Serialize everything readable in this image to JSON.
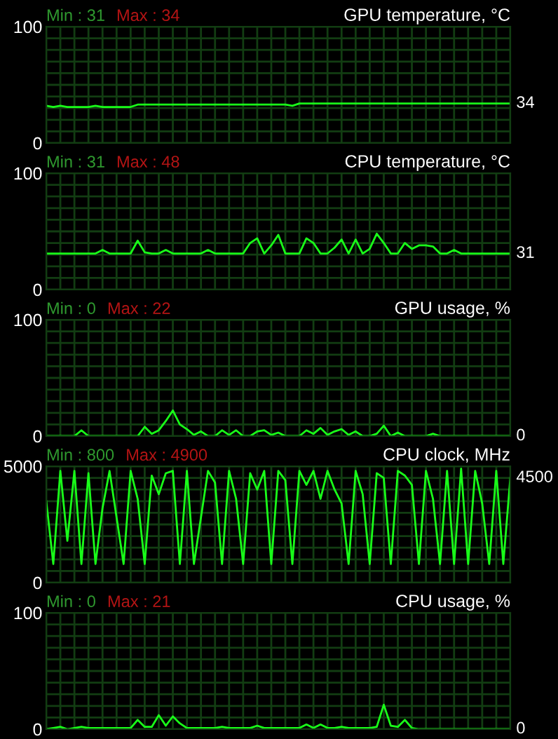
{
  "chart_data": [
    {
      "type": "line",
      "title": "GPU temperature, °C",
      "annotations": [
        "Min : 31",
        "Max : 34",
        "34"
      ],
      "grid": true,
      "tick_labels": "y",
      "categories": [
        null,
        null,
        null,
        null,
        null,
        null,
        null,
        null,
        null,
        null,
        null,
        null,
        null,
        null,
        null,
        null,
        null,
        null,
        null,
        null,
        null,
        null,
        null,
        null,
        null,
        null,
        null,
        null,
        null,
        null,
        null,
        null,
        null,
        null,
        null,
        null,
        null,
        null,
        null,
        null,
        null,
        null,
        null,
        null,
        null,
        null,
        null,
        null,
        null,
        null,
        null,
        null,
        null,
        null,
        null,
        null,
        null,
        null,
        null,
        null,
        null,
        null,
        null,
        null,
        null,
        null,
        null
      ],
      "ylim": [
        0,
        100
      ],
      "yticks": [
        0,
        {
          "value": 10,
          "label": null
        },
        {
          "value": 20,
          "label": null
        },
        {
          "value": 30,
          "label": null
        },
        {
          "value": 40,
          "label": null
        },
        {
          "value": 50,
          "label": null
        },
        {
          "value": 60,
          "label": null
        },
        {
          "value": 70,
          "label": null
        },
        {
          "value": 80,
          "label": null
        },
        {
          "value": 90,
          "label": null
        },
        100
      ],
      "series": [
        {
          "color": "#19ff19",
          "values": [
            32,
            31,
            32,
            31,
            31,
            31,
            31,
            32,
            31,
            31,
            31,
            31,
            31,
            33,
            33,
            33,
            33,
            33,
            33,
            33,
            33,
            33,
            33,
            33,
            33,
            33,
            33,
            33,
            33,
            33,
            33,
            33,
            33,
            33,
            33,
            32,
            34,
            34,
            34,
            34,
            34,
            34,
            34,
            34,
            34,
            34,
            34,
            34,
            34,
            34,
            34,
            34,
            34,
            34,
            34,
            34,
            34,
            34,
            34,
            34,
            34,
            34,
            34,
            34,
            34,
            34,
            34
          ]
        }
      ]
    },
    {
      "type": "line",
      "title": "CPU temperature, °C",
      "annotations": [
        "Min : 31",
        "Max : 48",
        "31"
      ],
      "grid": true,
      "tick_labels": "y",
      "categories": [
        null,
        null,
        null,
        null,
        null,
        null,
        null,
        null,
        null,
        null,
        null,
        null,
        null,
        null,
        null,
        null,
        null,
        null,
        null,
        null,
        null,
        null,
        null,
        null,
        null,
        null,
        null,
        null,
        null,
        null,
        null,
        null,
        null,
        null,
        null,
        null,
        null,
        null,
        null,
        null,
        null,
        null,
        null,
        null,
        null,
        null,
        null,
        null,
        null,
        null,
        null,
        null,
        null,
        null,
        null,
        null,
        null,
        null,
        null,
        null,
        null,
        null,
        null,
        null,
        null,
        null,
        null
      ],
      "ylim": [
        0,
        100
      ],
      "yticks": [
        0,
        {
          "value": 10,
          "label": null
        },
        {
          "value": 20,
          "label": null
        },
        {
          "value": 30,
          "label": null
        },
        {
          "value": 40,
          "label": null
        },
        {
          "value": 50,
          "label": null
        },
        {
          "value": 60,
          "label": null
        },
        {
          "value": 70,
          "label": null
        },
        {
          "value": 80,
          "label": null
        },
        {
          "value": 90,
          "label": null
        },
        100
      ],
      "series": [
        {
          "color": "#19ff19",
          "values": [
            31,
            31,
            31,
            31,
            31,
            31,
            31,
            31,
            34,
            31,
            31,
            31,
            31,
            42,
            32,
            31,
            31,
            34,
            31,
            31,
            31,
            31,
            31,
            34,
            31,
            31,
            31,
            31,
            31,
            40,
            44,
            31,
            38,
            47,
            31,
            31,
            31,
            44,
            40,
            31,
            31,
            36,
            43,
            31,
            43,
            31,
            35,
            48,
            40,
            31,
            31,
            40,
            35,
            38,
            38,
            37,
            31,
            31,
            34,
            31,
            31,
            31,
            31,
            31,
            31,
            31,
            31
          ]
        }
      ]
    },
    {
      "type": "line",
      "title": "GPU usage, %",
      "annotations": [
        "Min : 0",
        "Max : 22",
        "0"
      ],
      "grid": true,
      "tick_labels": "y",
      "categories": [
        null,
        null,
        null,
        null,
        null,
        null,
        null,
        null,
        null,
        null,
        null,
        null,
        null,
        null,
        null,
        null,
        null,
        null,
        null,
        null,
        null,
        null,
        null,
        null,
        null,
        null,
        null,
        null,
        null,
        null,
        null,
        null,
        null,
        null,
        null,
        null,
        null,
        null,
        null,
        null,
        null,
        null,
        null,
        null,
        null,
        null,
        null,
        null,
        null,
        null,
        null,
        null,
        null,
        null,
        null,
        null,
        null,
        null,
        null,
        null,
        null,
        null,
        null,
        null,
        null,
        null,
        null
      ],
      "ylim": [
        0,
        100
      ],
      "yticks": [
        0,
        {
          "value": 10,
          "label": null
        },
        {
          "value": 20,
          "label": null
        },
        {
          "value": 30,
          "label": null
        },
        {
          "value": 40,
          "label": null
        },
        {
          "value": 50,
          "label": null
        },
        {
          "value": 60,
          "label": null
        },
        {
          "value": 70,
          "label": null
        },
        {
          "value": 80,
          "label": null
        },
        {
          "value": 90,
          "label": null
        },
        100
      ],
      "series": [
        {
          "color": "#19ff19",
          "values": [
            0,
            0,
            0,
            0,
            0,
            5,
            0,
            0,
            0,
            0,
            0,
            0,
            0,
            0,
            8,
            2,
            5,
            13,
            22,
            10,
            6,
            1,
            4,
            0,
            0,
            5,
            1,
            5,
            0,
            0,
            4,
            5,
            1,
            3,
            0,
            0,
            0,
            5,
            2,
            7,
            1,
            4,
            6,
            1,
            4,
            0,
            0,
            2,
            9,
            0,
            3,
            0,
            0,
            0,
            0,
            2,
            0,
            0,
            0,
            0,
            0,
            0,
            0,
            0,
            0,
            0,
            0
          ]
        }
      ]
    },
    {
      "type": "line",
      "title": "CPU clock, MHz",
      "annotations": [
        "Min : 800",
        "Max : 4900",
        "4500"
      ],
      "grid": true,
      "tick_labels": "y",
      "categories": [
        null,
        null,
        null,
        null,
        null,
        null,
        null,
        null,
        null,
        null,
        null,
        null,
        null,
        null,
        null,
        null,
        null,
        null,
        null,
        null,
        null,
        null,
        null,
        null,
        null,
        null,
        null,
        null,
        null,
        null,
        null,
        null,
        null,
        null,
        null,
        null,
        null,
        null,
        null,
        null,
        null,
        null,
        null,
        null,
        null,
        null,
        null,
        null,
        null,
        null,
        null,
        null,
        null,
        null,
        null,
        null,
        null,
        null,
        null,
        null,
        null,
        null,
        null,
        null,
        null,
        null,
        null
      ],
      "ylim": [
        0,
        5000
      ],
      "yticks": [
        0,
        {
          "value": 500,
          "label": null
        },
        {
          "value": 1000,
          "label": null
        },
        {
          "value": 1500,
          "label": null
        },
        {
          "value": 2000,
          "label": null
        },
        {
          "value": 2500,
          "label": null
        },
        {
          "value": 3000,
          "label": null
        },
        {
          "value": 3500,
          "label": null
        },
        {
          "value": 4000,
          "label": null
        },
        {
          "value": 4500,
          "label": null
        },
        5000
      ],
      "series": [
        {
          "color": "#19ff19",
          "values": [
            3500,
            800,
            4800,
            1800,
            4800,
            800,
            4700,
            800,
            3200,
            4800,
            2800,
            800,
            4800,
            3600,
            800,
            4600,
            3800,
            4700,
            4800,
            800,
            4800,
            800,
            2800,
            4800,
            4300,
            800,
            4800,
            3600,
            800,
            4700,
            4000,
            4800,
            800,
            4800,
            4400,
            800,
            4800,
            4200,
            4800,
            3600,
            4800,
            4000,
            3400,
            800,
            4800,
            3800,
            800,
            4700,
            4500,
            800,
            4800,
            4600,
            4200,
            800,
            4800,
            3600,
            800,
            4800,
            800,
            4900,
            800,
            4800,
            3400,
            800,
            4800,
            800,
            4500
          ]
        }
      ]
    },
    {
      "type": "line",
      "title": "CPU usage, %",
      "annotations": [
        "Min : 0",
        "Max : 21",
        "0"
      ],
      "grid": true,
      "tick_labels": "y",
      "categories": [
        null,
        null,
        null,
        null,
        null,
        null,
        null,
        null,
        null,
        null,
        null,
        null,
        null,
        null,
        null,
        null,
        null,
        null,
        null,
        null,
        null,
        null,
        null,
        null,
        null,
        null,
        null,
        null,
        null,
        null,
        null,
        null,
        null,
        null,
        null,
        null,
        null,
        null,
        null,
        null,
        null,
        null,
        null,
        null,
        null,
        null,
        null,
        null,
        null,
        null,
        null,
        null,
        null,
        null,
        null,
        null,
        null,
        null,
        null,
        null,
        null,
        null,
        null,
        null,
        null,
        null,
        null
      ],
      "ylim": [
        0,
        100
      ],
      "yticks": [
        0,
        {
          "value": 10,
          "label": null
        },
        {
          "value": 20,
          "label": null
        },
        {
          "value": 30,
          "label": null
        },
        {
          "value": 40,
          "label": null
        },
        {
          "value": 50,
          "label": null
        },
        {
          "value": 60,
          "label": null
        },
        {
          "value": 70,
          "label": null
        },
        {
          "value": 80,
          "label": null
        },
        {
          "value": 90,
          "label": null
        },
        100
      ],
      "series": [
        {
          "color": "#19ff19",
          "values": [
            0,
            1,
            2,
            0,
            1,
            2,
            1,
            1,
            1,
            1,
            1,
            1,
            1,
            8,
            2,
            2,
            12,
            3,
            11,
            5,
            1,
            1,
            1,
            1,
            1,
            2,
            1,
            1,
            1,
            1,
            3,
            1,
            1,
            1,
            1,
            1,
            1,
            4,
            1,
            4,
            1,
            1,
            2,
            1,
            1,
            1,
            1,
            2,
            21,
            3,
            2,
            8,
            1,
            0,
            0,
            0,
            0,
            0,
            0,
            0,
            0,
            0,
            0,
            0,
            0,
            0,
            0
          ]
        }
      ]
    }
  ]
}
